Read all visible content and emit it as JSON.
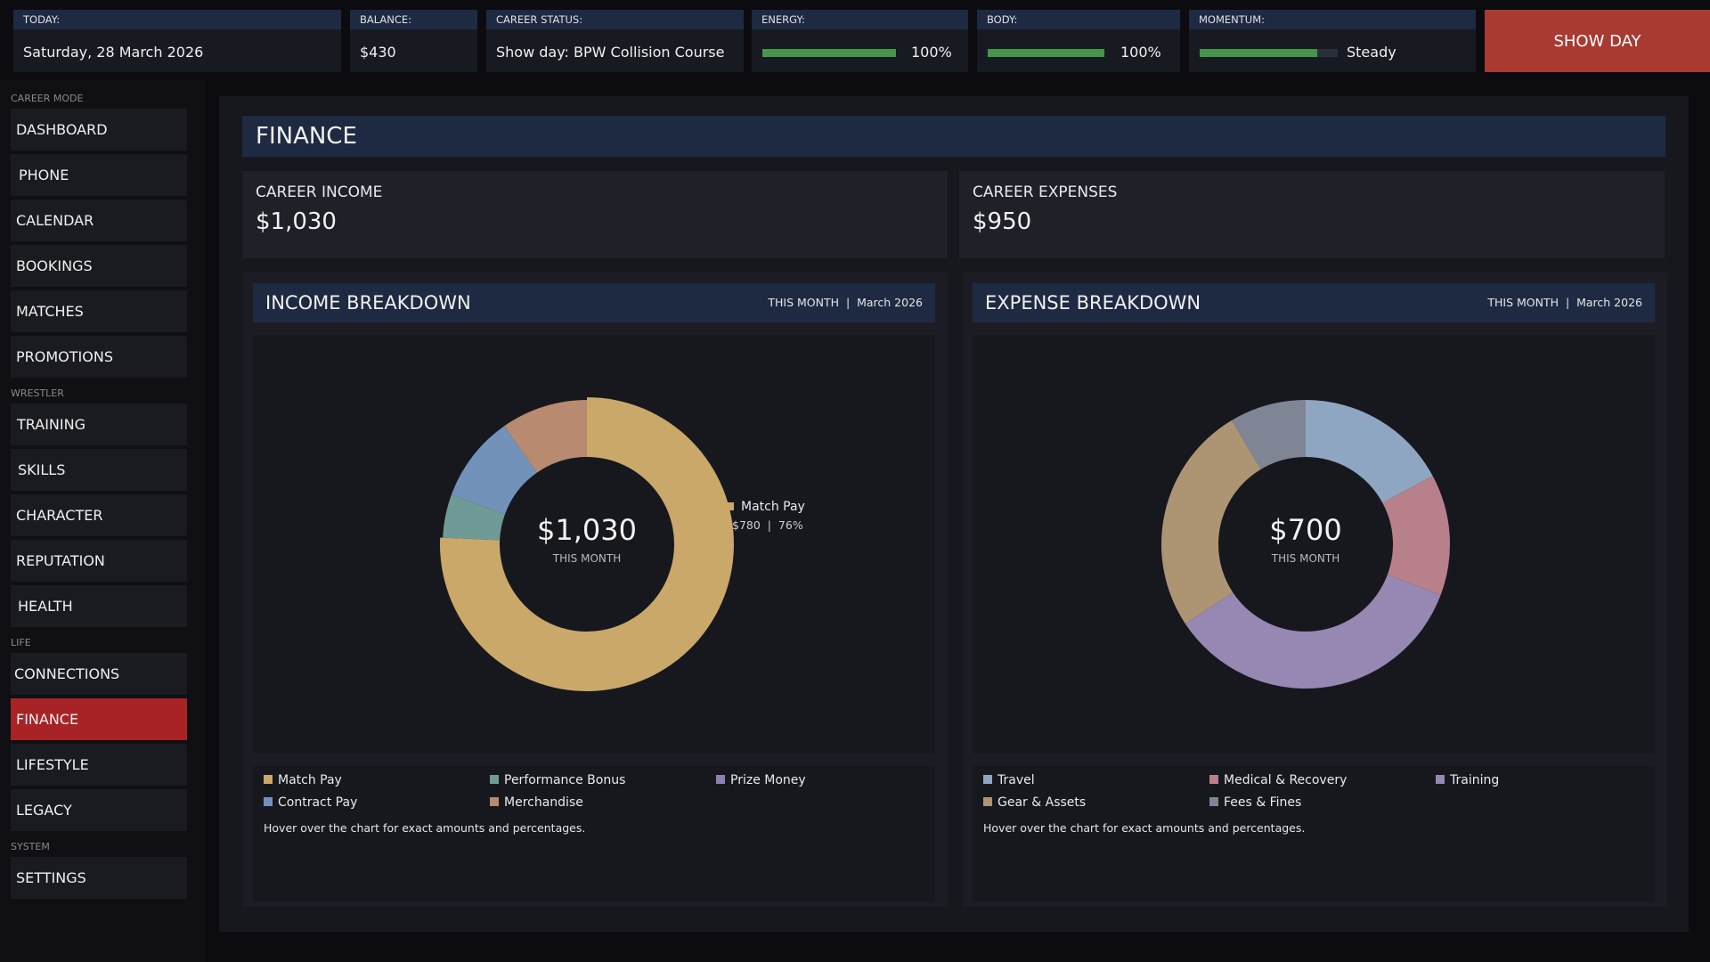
{
  "topbar": {
    "today": {
      "label": "TODAY:",
      "value": "Saturday, 28 March 2026"
    },
    "balance": {
      "label": "BALANCE:",
      "value": "$430"
    },
    "career_status": {
      "label": "CAREER STATUS:",
      "value": "Show day: BPW Collision Course"
    },
    "energy": {
      "label": "ENERGY:",
      "value": "100%",
      "level": 1.0
    },
    "body": {
      "label": "BODY:",
      "value": "100%",
      "level": 1.0
    },
    "momentum": {
      "label": "MOMENTUM:",
      "value": "Steady",
      "level": 0.85
    },
    "show_day_button": "SHOW DAY"
  },
  "sidebar": {
    "sections": {
      "career_mode": "CAREER MODE",
      "wrestler": "WRESTLER",
      "life": "LIFE",
      "system": "SYSTEM"
    },
    "items": [
      {
        "label": "DASHBOARD"
      },
      {
        "label": "PHONE"
      },
      {
        "label": "CALENDAR"
      },
      {
        "label": "BOOKINGS"
      },
      {
        "label": "MATCHES"
      },
      {
        "label": "PROMOTIONS"
      },
      {
        "label": "TRAINING"
      },
      {
        "label": "SKILLS"
      },
      {
        "label": "CHARACTER"
      },
      {
        "label": "REPUTATION"
      },
      {
        "label": "HEALTH"
      },
      {
        "label": "CONNECTIONS"
      },
      {
        "label": "FINANCE",
        "active": true
      },
      {
        "label": "LIFESTYLE"
      },
      {
        "label": "LEGACY"
      },
      {
        "label": "SETTINGS"
      }
    ]
  },
  "main": {
    "title": "FINANCE",
    "career_income": {
      "label": "CAREER INCOME",
      "value": "$1,030"
    },
    "career_expenses": {
      "label": "CAREER EXPENSES",
      "value": "$950"
    },
    "income": {
      "title": "INCOME BREAKDOWN",
      "period": "THIS MONTH  |  March 2026",
      "center_value": "$1,030",
      "center_sub": "THIS MONTH",
      "tooltip": {
        "name": "Match Pay",
        "detail": "$780  |  76%"
      },
      "hover_note": "Hover over the chart for exact amounts and percentages."
    },
    "expense": {
      "title": "EXPENSE BREAKDOWN",
      "period": "THIS MONTH  |  March 2026",
      "center_value": "$700",
      "center_sub": "THIS MONTH",
      "hover_note": "Hover over the chart for exact amounts and percentages."
    }
  },
  "chart_data": [
    {
      "type": "pie",
      "title": "INCOME BREAKDOWN",
      "categories": [
        "Match Pay",
        "Performance Bonus",
        "Prize Money",
        "Contract Pay",
        "Merchandise"
      ],
      "values": [
        780,
        50,
        0,
        100,
        100
      ],
      "colors": [
        "#c9a86a",
        "#6f9a96",
        "#8f7fb0",
        "#7392ba",
        "#b88a6f"
      ]
    },
    {
      "type": "pie",
      "title": "EXPENSE BREAKDOWN",
      "categories": [
        "Travel",
        "Medical & Recovery",
        "Training",
        "Gear & Assets",
        "Fees & Fines"
      ],
      "values": [
        120,
        95,
        245,
        180,
        60
      ],
      "colors": [
        "#8ea6c2",
        "#b8808a",
        "#9787b3",
        "#ad9573",
        "#7f8594"
      ]
    }
  ]
}
